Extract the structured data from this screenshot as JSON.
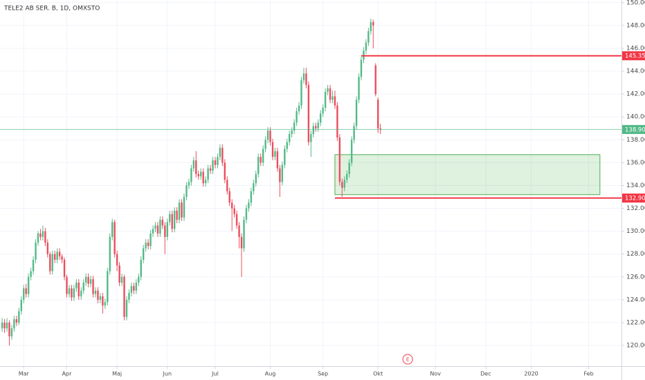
{
  "chart_data": {
    "type": "candlestick",
    "title": "TELE2 AB SER. B, 1D, OMXSTO",
    "up_color": "#53b987",
    "down_color": "#eb4d5c",
    "grid": true,
    "xlim": [
      -0.9,
      258.7
    ],
    "ylim": [
      118.19,
      150.23
    ],
    "xticks": [
      {
        "value": 9,
        "label": "Mar"
      },
      {
        "value": 27,
        "label": "Apr"
      },
      {
        "value": 48,
        "label": "Maj"
      },
      {
        "value": 69,
        "label": "Jun"
      },
      {
        "value": 89,
        "label": "Jul"
      },
      {
        "value": 112,
        "label": "Aug"
      },
      {
        "value": 134,
        "label": "Sep"
      },
      {
        "value": 157,
        "label": "Okt"
      },
      {
        "value": 181,
        "label": "Nov"
      },
      {
        "value": 202,
        "label": "Dec"
      },
      {
        "value": 221,
        "label": "2020"
      },
      {
        "value": 245,
        "label": "Feb"
      }
    ],
    "yticks": [
      {
        "value": 120,
        "label": "120.00"
      },
      {
        "value": 122,
        "label": "122.00"
      },
      {
        "value": 124,
        "label": "124.00"
      },
      {
        "value": 126,
        "label": "126.00"
      },
      {
        "value": 128,
        "label": "128.00"
      },
      {
        "value": 130,
        "label": "130.00"
      },
      {
        "value": 132,
        "label": "132.00"
      },
      {
        "value": 134,
        "label": "134.00"
      },
      {
        "value": 136,
        "label": "136.00"
      },
      {
        "value": 138,
        "label": "138.00"
      },
      {
        "value": 140,
        "label": "140.00"
      },
      {
        "value": 142,
        "label": "142.00"
      },
      {
        "value": 144,
        "label": "144.00"
      },
      {
        "value": 146,
        "label": "146.00"
      },
      {
        "value": 148,
        "label": "148.00"
      },
      {
        "value": 150,
        "label": "150.00"
      }
    ],
    "candles": [
      [
        121.5,
        122.4,
        121.2,
        122
      ],
      [
        122,
        122.3,
        121.1,
        121.5
      ],
      [
        121.5,
        122.4,
        121.2,
        122
      ],
      [
        122,
        122.2,
        120,
        120.8
      ],
      [
        120.8,
        121.8,
        120.5,
        121.5
      ],
      [
        121.5,
        122.6,
        121.2,
        122.3
      ],
      [
        122.3,
        122.6,
        121.7,
        122
      ],
      [
        122,
        123.3,
        121.8,
        123
      ],
      [
        123,
        124.3,
        122.7,
        124
      ],
      [
        124,
        125.3,
        123.7,
        125
      ],
      [
        125,
        125.4,
        124.2,
        124.5
      ],
      [
        124.5,
        126.3,
        124.2,
        126
      ],
      [
        126,
        126.8,
        125.7,
        126.5
      ],
      [
        126.5,
        127.8,
        126.2,
        127.5
      ],
      [
        127.5,
        129.3,
        127.2,
        129
      ],
      [
        129,
        130,
        128.7,
        129.8
      ],
      [
        129.8,
        130.2,
        129.2,
        129.5
      ],
      [
        129.5,
        130.5,
        129.2,
        130
      ],
      [
        130,
        130.3,
        128.7,
        129
      ],
      [
        129,
        129.3,
        127.7,
        128
      ],
      [
        128,
        128.2,
        126.2,
        126.5
      ],
      [
        126.5,
        128.3,
        126.2,
        128
      ],
      [
        128,
        128.3,
        127.2,
        127.5
      ],
      [
        127.5,
        128.5,
        127.2,
        128.2
      ],
      [
        128.2,
        128.5,
        127.5,
        127.8
      ],
      [
        127.8,
        128,
        127.2,
        127.5
      ],
      [
        127.5,
        127.7,
        125.7,
        126
      ],
      [
        126,
        126.2,
        124.2,
        124.5
      ],
      [
        124.5,
        125.3,
        124.2,
        125
      ],
      [
        125,
        125.3,
        123.9,
        124.2
      ],
      [
        124.2,
        125.3,
        123.9,
        125
      ],
      [
        125,
        125.8,
        124.7,
        125.5
      ],
      [
        125.5,
        125.8,
        124,
        124.3
      ],
      [
        124.3,
        125.1,
        124,
        124.8
      ],
      [
        124.8,
        125.8,
        124.5,
        125.5
      ],
      [
        125.5,
        126.3,
        125.2,
        126
      ],
      [
        126,
        126.3,
        125.1,
        125.4
      ],
      [
        125.4,
        126.1,
        125.1,
        125.8
      ],
      [
        125.8,
        126.1,
        124.2,
        124.5
      ],
      [
        124.5,
        125.1,
        124.2,
        124.8
      ],
      [
        124.8,
        125.1,
        123.7,
        124
      ],
      [
        124,
        124.6,
        123.7,
        124.3
      ],
      [
        124.3,
        124.6,
        122.8,
        123.5
      ],
      [
        123.5,
        124.1,
        123.2,
        123.8
      ],
      [
        123.8,
        126.8,
        123.5,
        126.5
      ],
      [
        126.5,
        129.8,
        126.2,
        129.5
      ],
      [
        129.5,
        131.1,
        129.2,
        130.8
      ],
      [
        130.8,
        131,
        127.7,
        128
      ],
      [
        128,
        128.3,
        126.5,
        127
      ],
      [
        127,
        127.3,
        125.2,
        125.5
      ],
      [
        125.5,
        126.3,
        125.2,
        126
      ],
      [
        126,
        126.2,
        122.2,
        122.5
      ],
      [
        122.5,
        124.3,
        122.2,
        124
      ],
      [
        124,
        124.9,
        123.7,
        124.6
      ],
      [
        124.6,
        125.5,
        124.3,
        125.2
      ],
      [
        125.2,
        125.5,
        124.5,
        124.8
      ],
      [
        124.8,
        125.8,
        124.5,
        125.5
      ],
      [
        125.5,
        126.3,
        125.2,
        126
      ],
      [
        126,
        127.8,
        125.7,
        127.5
      ],
      [
        127.5,
        128.8,
        127.2,
        128.5
      ],
      [
        128.5,
        129.3,
        128.2,
        129
      ],
      [
        129,
        129.3,
        128.4,
        128.7
      ],
      [
        128.7,
        130.1,
        128.4,
        129.8
      ],
      [
        129.8,
        130.5,
        129.5,
        130.2
      ],
      [
        130.2,
        130.8,
        129.9,
        130.5
      ],
      [
        130.5,
        130.8,
        129.5,
        129.8
      ],
      [
        129.8,
        131.3,
        129.5,
        131
      ],
      [
        131,
        131.3,
        130.2,
        130.5
      ],
      [
        130.5,
        130.8,
        128,
        129.5
      ],
      [
        129.5,
        131.1,
        129.2,
        130.8
      ],
      [
        130.8,
        131.8,
        130.5,
        131.5
      ],
      [
        131.5,
        131.8,
        129.9,
        130.2
      ],
      [
        130.2,
        132.1,
        129.9,
        131.8
      ],
      [
        131.8,
        132.1,
        130.7,
        131
      ],
      [
        131,
        132.8,
        130.7,
        132.5
      ],
      [
        132.5,
        132.8,
        130.9,
        131.2
      ],
      [
        131.2,
        133.3,
        130.9,
        133
      ],
      [
        133,
        134.3,
        132.7,
        134
      ],
      [
        134,
        134.6,
        133.7,
        134.3
      ],
      [
        134.3,
        135.8,
        134,
        135.5
      ],
      [
        135.5,
        136.5,
        135.2,
        136.2
      ],
      [
        136.2,
        137,
        134.7,
        135
      ],
      [
        135,
        135.3,
        134.5,
        134.8
      ],
      [
        134.8,
        135.5,
        134.5,
        135.2
      ],
      [
        135.2,
        135.5,
        133.9,
        134.2
      ],
      [
        134.2,
        134.8,
        133.9,
        134.5
      ],
      [
        134.5,
        135.8,
        134.2,
        135.5
      ],
      [
        135.5,
        135.8,
        135,
        135.3
      ],
      [
        135.3,
        136.5,
        135,
        136.2
      ],
      [
        136.2,
        136.5,
        135.5,
        135.8
      ],
      [
        135.8,
        136.8,
        135.5,
        136.5
      ],
      [
        136.5,
        137.6,
        136.2,
        137.3
      ],
      [
        137.3,
        137.6,
        135.7,
        136
      ],
      [
        136,
        136.3,
        134.2,
        134.5
      ],
      [
        134.5,
        134.8,
        133.2,
        133.5
      ],
      [
        133.5,
        133.8,
        132.2,
        132.5
      ],
      [
        132.5,
        132.8,
        130,
        132
      ],
      [
        132,
        132.3,
        131.2,
        131.5
      ],
      [
        131.5,
        131.8,
        130.2,
        130.5
      ],
      [
        130.5,
        130.8,
        128.5,
        129.5
      ],
      [
        129.5,
        129.8,
        126,
        128.5
      ],
      [
        128.5,
        131.3,
        128.2,
        131
      ],
      [
        131,
        132.3,
        130.7,
        132
      ],
      [
        132,
        132.8,
        131.7,
        132.5
      ],
      [
        132.5,
        133.8,
        132.2,
        133.5
      ],
      [
        133.5,
        134.5,
        133.2,
        134.2
      ],
      [
        134.2,
        135.3,
        133.9,
        135
      ],
      [
        135,
        136.8,
        134.7,
        136.5
      ],
      [
        136.5,
        136.8,
        135.7,
        136
      ],
      [
        136,
        137.5,
        135.7,
        137.2
      ],
      [
        137.2,
        138.3,
        136.9,
        138
      ],
      [
        138,
        139.1,
        137.7,
        138.8
      ],
      [
        138.8,
        139.1,
        137.5,
        137.8
      ],
      [
        137.8,
        138.1,
        136.2,
        136.5
      ],
      [
        136.5,
        137.3,
        136.2,
        137
      ],
      [
        137,
        137.3,
        135.2,
        135.5
      ],
      [
        135.5,
        135.8,
        133,
        134.3
      ],
      [
        134.3,
        136.1,
        134,
        135.8
      ],
      [
        135.8,
        137.5,
        135.5,
        137.2
      ],
      [
        137.2,
        138.1,
        136.9,
        137.8
      ],
      [
        137.8,
        138.8,
        137.5,
        138.5
      ],
      [
        138.5,
        139.1,
        138.2,
        138.8
      ],
      [
        138.8,
        139.8,
        138.5,
        139.5
      ],
      [
        139.5,
        140.8,
        139.2,
        140.5
      ],
      [
        140.5,
        141.3,
        140.2,
        141
      ],
      [
        141,
        143.5,
        140.7,
        143.2
      ],
      [
        143.2,
        144.3,
        142.9,
        143.8
      ],
      [
        143.8,
        144.3,
        142.5,
        142.8
      ],
      [
        142.8,
        143.1,
        137.5,
        137.8
      ],
      [
        137.8,
        138.8,
        136.5,
        138.5
      ],
      [
        138.5,
        139.5,
        138.2,
        139.2
      ],
      [
        139.2,
        139.5,
        138.7,
        139
      ],
      [
        139,
        139.8,
        138.7,
        139.5
      ],
      [
        139.5,
        140.6,
        139.2,
        140.3
      ],
      [
        140.3,
        141.1,
        140,
        140.8
      ],
      [
        140.8,
        142.5,
        140.5,
        142.2
      ],
      [
        142.2,
        142.8,
        141.9,
        142.5
      ],
      [
        142.5,
        142.8,
        141.2,
        141.5
      ],
      [
        141.5,
        142.3,
        141.2,
        141.8
      ],
      [
        141.8,
        142.3,
        140.7,
        141
      ],
      [
        141,
        141.3,
        137.9,
        138.2
      ],
      [
        138.2,
        138.5,
        134,
        134.3
      ],
      [
        134.3,
        134.6,
        133,
        133.8
      ],
      [
        133.8,
        134.8,
        133.5,
        134.5
      ],
      [
        134.5,
        135.3,
        134.2,
        135
      ],
      [
        135,
        136.3,
        134.7,
        136
      ],
      [
        136,
        138.3,
        135.7,
        138
      ],
      [
        138,
        139.5,
        137.7,
        139.2
      ],
      [
        139.2,
        141.8,
        138.9,
        141.5
      ],
      [
        141.5,
        143.8,
        141.2,
        143.5
      ],
      [
        143.5,
        145.3,
        143.2,
        145
      ],
      [
        145,
        146.1,
        144.7,
        145.8
      ],
      [
        145.8,
        146.8,
        145.5,
        146.5
      ],
      [
        146.5,
        147.8,
        146.2,
        147.5
      ],
      [
        147.5,
        148.6,
        147.2,
        148.3
      ],
      [
        148.3,
        148.5,
        146,
        148
      ],
      [
        144.5,
        144.7,
        141.8,
        142
      ],
      [
        141.5,
        141.7,
        138.6,
        139
      ],
      [
        139,
        139.4,
        138.5,
        138.9
      ]
    ],
    "levels": [
      {
        "value": 138.9,
        "label": "138.90",
        "color": "#53b987"
      },
      {
        "value": 145.35,
        "label": "145.35",
        "color": "#f23645",
        "x_start": 150
      },
      {
        "value": 132.9,
        "label": "132.90",
        "color": "#f23645",
        "x_start": 139
      }
    ],
    "zone": {
      "y": [
        133.2,
        136.7
      ],
      "x": [
        139,
        249.7
      ],
      "color": "#4caf50"
    },
    "event": {
      "label": "E",
      "x": 169.4,
      "color": "#f23645"
    }
  }
}
